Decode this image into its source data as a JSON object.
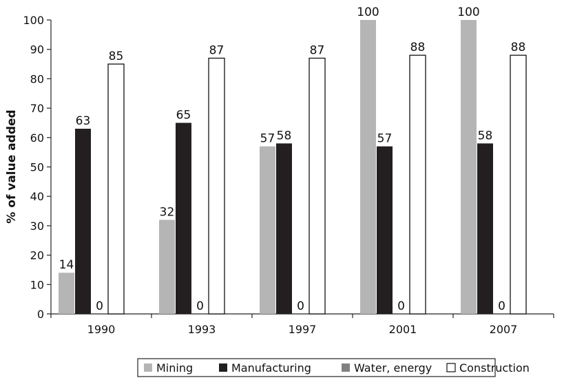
{
  "chart_data": {
    "type": "bar",
    "title": "",
    "xlabel": "",
    "ylabel": "% of value added",
    "ylim": [
      0,
      100
    ],
    "yticks": [
      0,
      10,
      20,
      30,
      40,
      50,
      60,
      70,
      80,
      90,
      100
    ],
    "categories": [
      "1990",
      "1993",
      "1997",
      "2001",
      "2007"
    ],
    "series": [
      {
        "name": "Mining",
        "color": "#b5b5b5",
        "values": [
          14,
          32,
          57,
          100,
          100
        ]
      },
      {
        "name": "Manufacturing",
        "color": "#231f20",
        "values": [
          63,
          65,
          58,
          57,
          58
        ]
      },
      {
        "name": "Water, energy",
        "color": "#808080",
        "values": [
          0,
          0,
          0,
          0,
          0
        ]
      },
      {
        "name": "Construction",
        "color": "#ffffff",
        "values": [
          85,
          87,
          87,
          88,
          88
        ]
      }
    ],
    "data_labels": [
      [
        "14",
        "32",
        "57",
        "100",
        "100"
      ],
      [
        "63",
        "65",
        "58",
        "57",
        "58"
      ],
      [
        "0",
        "0",
        "0",
        "0",
        "0"
      ],
      [
        "85",
        "87",
        "87",
        "88",
        "88"
      ]
    ],
    "grid": false,
    "legend_position": "bottom"
  }
}
